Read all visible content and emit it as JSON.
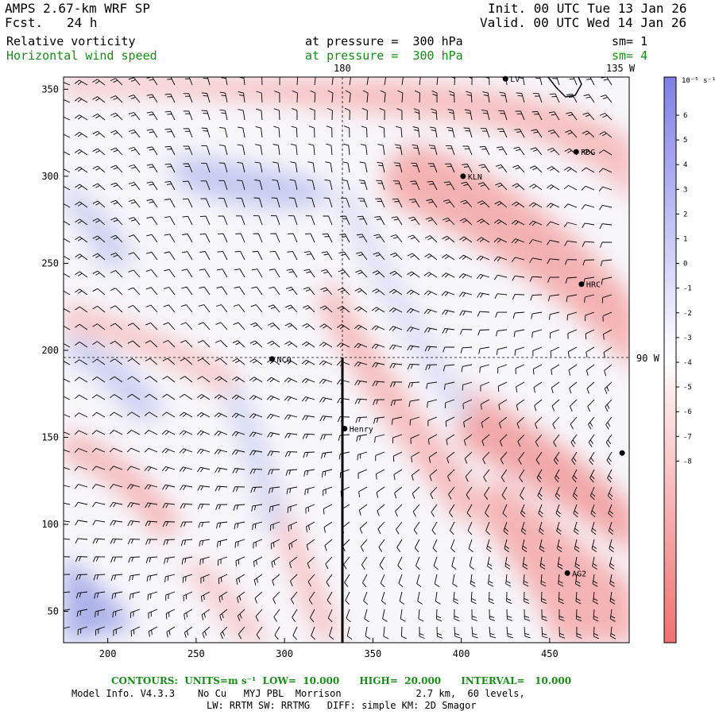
{
  "header": {
    "model": "AMPS 2.67-km WRF SP",
    "fcst_label": "Fcst.",
    "fcst_value": "24 h",
    "init": "Init. 00 UTC Tue 13 Jan 26",
    "valid": "Valid. 00 UTC Wed 14 Jan 26",
    "field1": {
      "name": "Relative vorticity",
      "level": "at pressure =  300 hPa",
      "smooth": "sm= 1"
    },
    "field2": {
      "name": "Horizontal wind speed",
      "level": "at pressure =  300 hPa",
      "smooth": "sm= 4"
    }
  },
  "map": {
    "lon_label_top_1": "180",
    "lon_label_top_2": "135 W",
    "lon_label_right": "90 W",
    "x_ticks": [
      "200",
      "250",
      "300",
      "350",
      "400",
      "450"
    ],
    "y_ticks": [
      "50",
      "100",
      "150",
      "200",
      "250",
      "300",
      "350"
    ],
    "stations": [
      {
        "label": "LV",
        "x": 425,
        "y": 356
      },
      {
        "label": "RDG",
        "x": 465,
        "y": 314
      },
      {
        "label": "KLN",
        "x": 401,
        "y": 300
      },
      {
        "label": "HRC",
        "x": 468,
        "y": 238
      },
      {
        "label": "NCO",
        "x": 293,
        "y": 195
      },
      {
        "label": "Henry",
        "x": 334,
        "y": 155
      },
      {
        "label": "",
        "x": 491,
        "y": 141
      },
      {
        "label": "AG2",
        "x": 460,
        "y": 72
      }
    ]
  },
  "colorbar": {
    "unit_label": "10⁻⁵ s⁻¹",
    "ticks": [
      "6",
      "5",
      "4",
      "3",
      "2",
      "1",
      "0",
      "-1",
      "-2",
      "-3",
      "-4",
      "-5",
      "-6",
      "-7",
      "-8"
    ]
  },
  "footer": {
    "contours": "CONTOURS:  UNITS=m s⁻¹  LOW=  10.000      HIGH=  20.000      INTERVAL=   10.000",
    "info1": "Model Info. V4.3.3    No Cu   MYJ PBL  Morrison             2.7 km,  60 levels,",
    "info2": "LW: RRTM SW: RRTMG   DIFF: simple KM: 2D Smagor"
  },
  "colors": {
    "positive": "#7f7fe6",
    "negative": "#f08080",
    "contour": "#1a8a1a"
  }
}
